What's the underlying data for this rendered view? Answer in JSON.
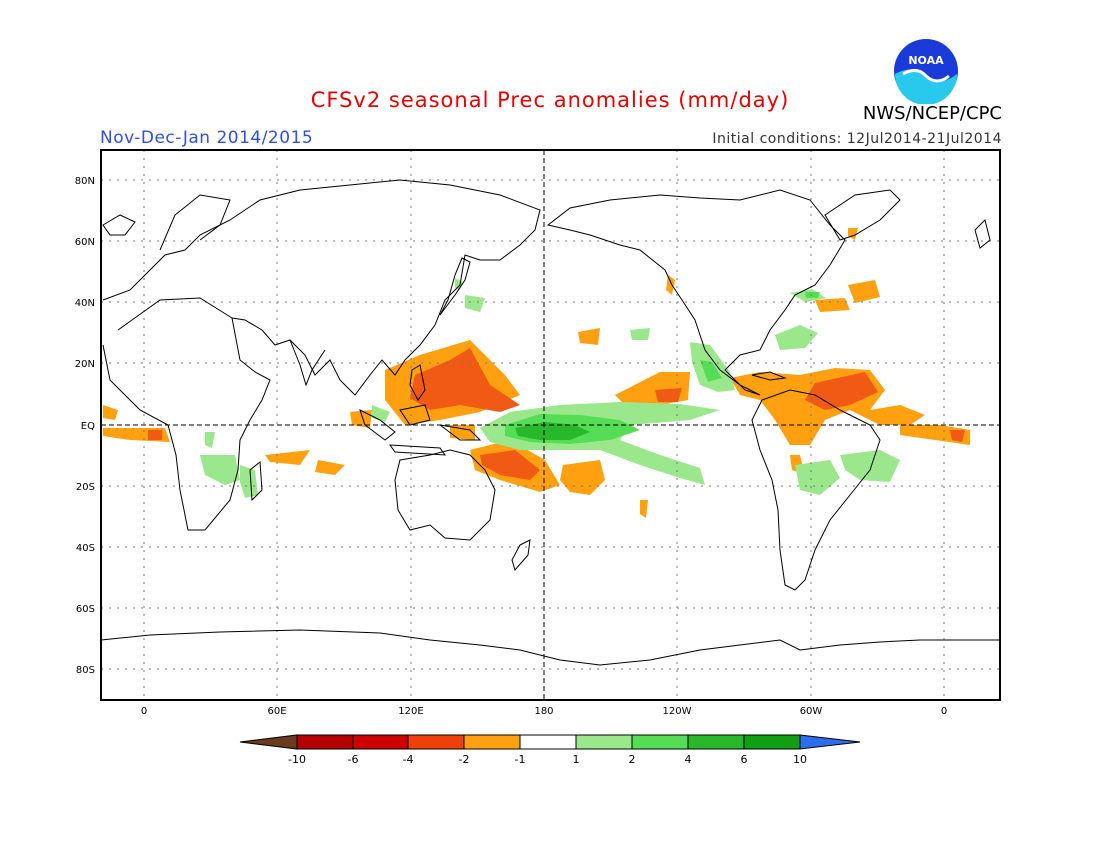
{
  "header": {
    "title": "CFSv2 seasonal Prec anomalies (mm/day)",
    "season": "Nov-Dec-Jan 2014/2015",
    "agency": "NWS/NCEP/CPC",
    "initial_conditions": "Initial conditions: 12Jul2014-21Jul2014",
    "logo_text": "NOAA"
  },
  "axes": {
    "lat_labels": [
      "80N",
      "60N",
      "40N",
      "20N",
      "EQ",
      "20S",
      "40S",
      "60S",
      "80S"
    ],
    "lon_labels": [
      "0",
      "60E",
      "120E",
      "180",
      "120W",
      "60W",
      "0"
    ]
  },
  "colorbar": {
    "labels": [
      "-10",
      "-6",
      "-4",
      "-2",
      "-1",
      "1",
      "2",
      "4",
      "6",
      "10"
    ],
    "colors": [
      "#6b3b1f",
      "#b40000",
      "#cc0000",
      "#f0400a",
      "#ffa010",
      "#ffffff",
      "#9be88c",
      "#55dd55",
      "#29b829",
      "#129e12",
      "#2d6df0"
    ]
  },
  "colors": {
    "title": "#e60000",
    "season": "#2e50e0",
    "neg_strong": "#e83010",
    "neg_mid": "#f05a14",
    "neg_weak": "#ffa010",
    "pos_weak": "#9be88c",
    "pos_mid": "#55dd55",
    "pos_strong": "#29b829"
  }
}
